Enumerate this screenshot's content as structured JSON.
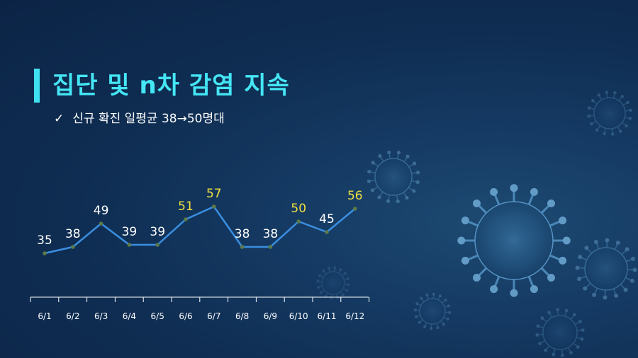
{
  "header": {
    "title": "집단 및 n차 감염 지속",
    "subtitle_check": "✓",
    "subtitle": "신규 확진 일평균 38→50명대"
  },
  "colors": {
    "background": "#0f2d52",
    "title": "#45e6f5",
    "line": "#3a8fe0",
    "point": "#5a7a4a",
    "label_normal": "#ffffff",
    "label_highlight": "#f0e040",
    "axis": "#ffffff"
  },
  "chart_data": {
    "type": "line",
    "title": "",
    "xlabel": "",
    "ylabel": "",
    "categories": [
      "6/1",
      "6/2",
      "6/3",
      "6/4",
      "6/5",
      "6/6",
      "6/7",
      "6/8",
      "6/9",
      "6/10",
      "6/11",
      "6/12"
    ],
    "series": [
      {
        "values": [
          35,
          38,
          49,
          39,
          39,
          51,
          57,
          38,
          38,
          50,
          45,
          56
        ]
      }
    ],
    "highlighted_labels": [
      "6/6",
      "6/7",
      "6/10",
      "6/12"
    ],
    "ylim": [
      0,
      100
    ],
    "grid": false,
    "legend": "none"
  }
}
